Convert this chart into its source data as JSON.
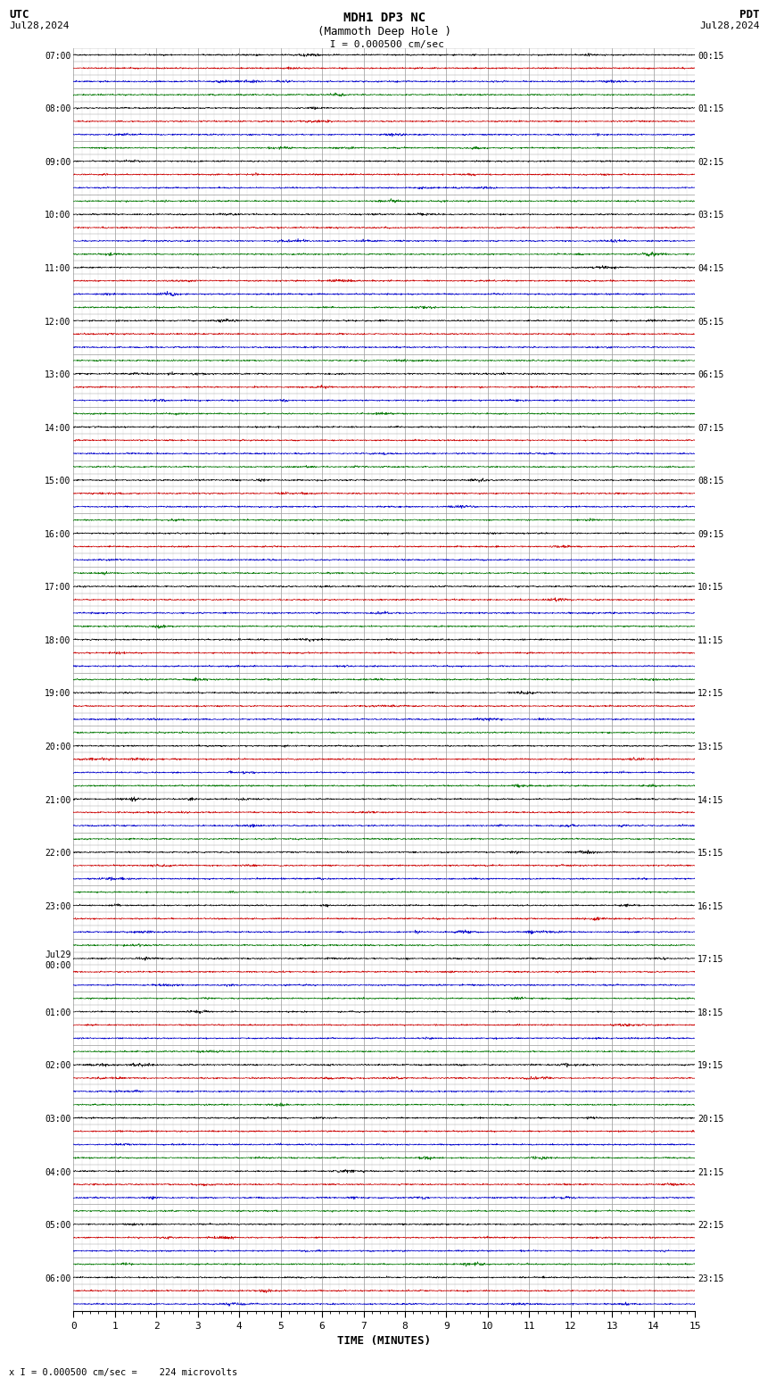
{
  "title_line1": "MDH1 DP3 NC",
  "title_line2": "(Mammoth Deep Hole )",
  "scale_label": " I = 0.000500 cm/sec",
  "left_header": "UTC",
  "left_date": "Jul28,2024",
  "right_header": "PDT",
  "right_date": "Jul28,2024",
  "xlabel": "TIME (MINUTES)",
  "bottom_note": "x I = 0.000500 cm/sec =    224 microvolts",
  "utc_times": [
    "07:00",
    "",
    "",
    "",
    "08:00",
    "",
    "",
    "",
    "09:00",
    "",
    "",
    "",
    "10:00",
    "",
    "",
    "",
    "11:00",
    "",
    "",
    "",
    "12:00",
    "",
    "",
    "",
    "13:00",
    "",
    "",
    "",
    "14:00",
    "",
    "",
    "",
    "15:00",
    "",
    "",
    "",
    "16:00",
    "",
    "",
    "",
    "17:00",
    "",
    "",
    "",
    "18:00",
    "",
    "",
    "",
    "19:00",
    "",
    "",
    "",
    "20:00",
    "",
    "",
    "",
    "21:00",
    "",
    "",
    "",
    "22:00",
    "",
    "",
    "",
    "23:00",
    "",
    "",
    "",
    "Jul29\n00:00",
    "",
    "",
    "",
    "01:00",
    "",
    "",
    "",
    "02:00",
    "",
    "",
    "",
    "03:00",
    "",
    "",
    "",
    "04:00",
    "",
    "",
    "",
    "05:00",
    "",
    "",
    "",
    "06:00",
    "",
    ""
  ],
  "pdt_times": [
    "00:15",
    "",
    "",
    "",
    "01:15",
    "",
    "",
    "",
    "02:15",
    "",
    "",
    "",
    "03:15",
    "",
    "",
    "",
    "04:15",
    "",
    "",
    "",
    "05:15",
    "",
    "",
    "",
    "06:15",
    "",
    "",
    "",
    "07:15",
    "",
    "",
    "",
    "08:15",
    "",
    "",
    "",
    "09:15",
    "",
    "",
    "",
    "10:15",
    "",
    "",
    "",
    "11:15",
    "",
    "",
    "",
    "12:15",
    "",
    "",
    "",
    "13:15",
    "",
    "",
    "",
    "14:15",
    "",
    "",
    "",
    "15:15",
    "",
    "",
    "",
    "16:15",
    "",
    "",
    "",
    "17:15",
    "",
    "",
    "",
    "18:15",
    "",
    "",
    "",
    "19:15",
    "",
    "",
    "",
    "20:15",
    "",
    "",
    "",
    "21:15",
    "",
    "",
    "",
    "22:15",
    "",
    "",
    "",
    "23:15",
    "",
    ""
  ],
  "trace_colors": [
    "#000000",
    "#cc0000",
    "#0000cc",
    "#007700"
  ],
  "bg_color": "#ffffff",
  "grid_color": "#999999",
  "num_rows": 95,
  "minutes": 15,
  "noise_seed": 42
}
